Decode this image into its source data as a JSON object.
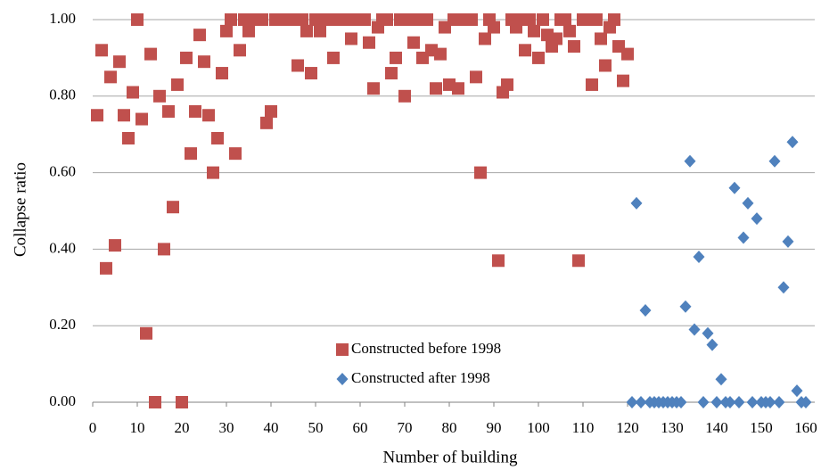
{
  "chart_data": {
    "type": "scatter",
    "x_label": "Number  of building",
    "y_label": "Collapse ratio",
    "xlim": [
      0,
      162
    ],
    "ylim": [
      0,
      1
    ],
    "xticks": [
      0,
      10,
      20,
      30,
      40,
      50,
      60,
      70,
      80,
      90,
      100,
      110,
      120,
      130,
      140,
      150,
      160
    ],
    "yticks": [
      {
        "value": 0,
        "label": "0.00"
      },
      {
        "value": 0.2,
        "label": "0.20"
      },
      {
        "value": 0.4,
        "label": "0.40"
      },
      {
        "value": 0.6,
        "label": "0.60"
      },
      {
        "value": 0.8,
        "label": "0.80"
      },
      {
        "value": 1,
        "label": "1.00"
      }
    ],
    "grid": true,
    "series": [
      {
        "name": "Constructed before 1998",
        "color": "#c0504d",
        "marker": "square",
        "x": [
          1,
          2,
          3,
          4,
          5,
          6,
          7,
          8,
          9,
          10,
          11,
          12,
          13,
          14,
          15,
          16,
          17,
          18,
          19,
          20,
          21,
          22,
          23,
          24,
          25,
          26,
          27,
          28,
          29,
          30,
          31,
          32,
          33,
          34,
          35,
          36,
          37,
          38,
          39,
          40,
          41,
          42,
          43,
          44,
          45,
          46,
          47,
          48,
          49,
          50,
          51,
          52,
          53,
          54,
          55,
          56,
          57,
          58,
          59,
          60,
          61,
          62,
          63,
          64,
          65,
          66,
          67,
          68,
          69,
          70,
          71,
          72,
          73,
          74,
          75,
          76,
          77,
          78,
          79,
          80,
          81,
          82,
          83,
          84,
          85,
          86,
          87,
          88,
          89,
          90,
          91,
          92,
          93,
          94,
          95,
          96,
          97,
          98,
          99,
          100,
          101,
          102,
          103,
          104,
          105,
          106,
          107,
          108,
          109,
          110,
          111,
          112,
          113,
          114,
          115,
          116,
          117,
          118,
          119,
          120
        ],
        "values": [
          0.75,
          0.92,
          0.35,
          0.85,
          0.41,
          0.89,
          0.75,
          0.69,
          0.81,
          1.0,
          0.74,
          0.18,
          0.91,
          0,
          0.8,
          0.4,
          0.76,
          0.51,
          0.83,
          0,
          0.9,
          0.65,
          0.76,
          0.96,
          0.89,
          0.75,
          0.6,
          0.69,
          0.86,
          0.97,
          1,
          0.65,
          0.92,
          1,
          0.97,
          1,
          1,
          1,
          0.73,
          0.76,
          1,
          1,
          1,
          1,
          1,
          0.88,
          1,
          0.97,
          0.86,
          1,
          0.97,
          1,
          1,
          0.9,
          1,
          1,
          1,
          0.95,
          1,
          1,
          1,
          0.94,
          0.82,
          0.98,
          1,
          1,
          0.86,
          0.9,
          1,
          0.8,
          1,
          0.94,
          1,
          0.9,
          1,
          0.92,
          0.82,
          0.91,
          0.98,
          0.83,
          1,
          0.82,
          1,
          1,
          1,
          0.85,
          0.6,
          0.95,
          1,
          0.98,
          0.37,
          0.81,
          0.83,
          1,
          0.98,
          1,
          0.92,
          1,
          0.97,
          0.9,
          1,
          0.96,
          0.93,
          0.95,
          1,
          1,
          0.97,
          0.93,
          0.37,
          1,
          1,
          0.83,
          1,
          0.95,
          0.88,
          0.98,
          1,
          0.93,
          0.84,
          0.91
        ]
      },
      {
        "name": "Constructed after 1998",
        "color": "#4f81bd",
        "marker": "diamond",
        "x": [
          121,
          122,
          123,
          124,
          125,
          126,
          127,
          128,
          129,
          130,
          131,
          132,
          133,
          134,
          135,
          136,
          137,
          138,
          139,
          140,
          141,
          142,
          143,
          144,
          145,
          146,
          147,
          148,
          149,
          150,
          151,
          152,
          153,
          154,
          155,
          156,
          157,
          158,
          159,
          160
        ],
        "values": [
          0,
          0.52,
          0,
          0.24,
          0,
          0,
          0,
          0,
          0,
          0,
          0,
          0,
          0.25,
          0.63,
          0.19,
          0.38,
          0,
          0.18,
          0.15,
          0,
          0.06,
          0,
          0,
          0.56,
          0,
          0.43,
          0.52,
          0,
          0.48,
          0,
          0,
          0,
          0.63,
          0,
          0.3,
          0.42,
          0.68,
          0.03,
          0,
          0
        ]
      }
    ]
  }
}
